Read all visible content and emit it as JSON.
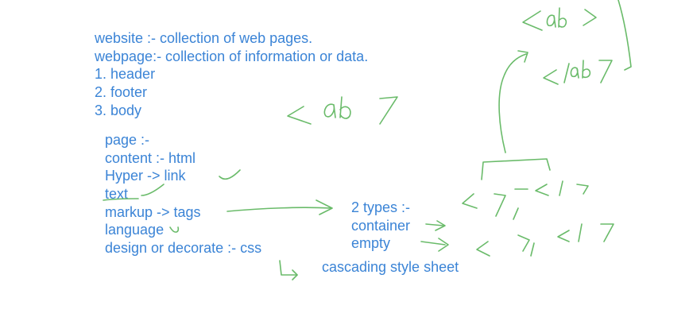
{
  "colors": {
    "text": "#3b84d6",
    "ink": "#6abb6a",
    "background": "#ffffff"
  },
  "notes_top": {
    "line1": "website :- collection of web pages.",
    "line2": "webpage:- collection of information or data.",
    "line3": "1. header",
    "line4": "2. footer",
    "line5": "3. body"
  },
  "notes_mid": {
    "line1": "page :-",
    "line2": "content :- html",
    "line3": "Hyper -> link",
    "line4": "text",
    "line5": "markup -> tags",
    "line6": "language",
    "line7": "design or decorate :- css"
  },
  "notes_right": {
    "line1": "2 types :-",
    "line2": "container",
    "line3": "empty"
  },
  "notes_bottom": {
    "line1": "cascading style sheet"
  },
  "handwriting": {
    "center_tag": "< ab 7",
    "top_tag_open": "<ab >",
    "top_tag_close": "</ab7",
    "container_pair": "< 7 </ 7",
    "empty_pair": "< 7 </ 7"
  }
}
